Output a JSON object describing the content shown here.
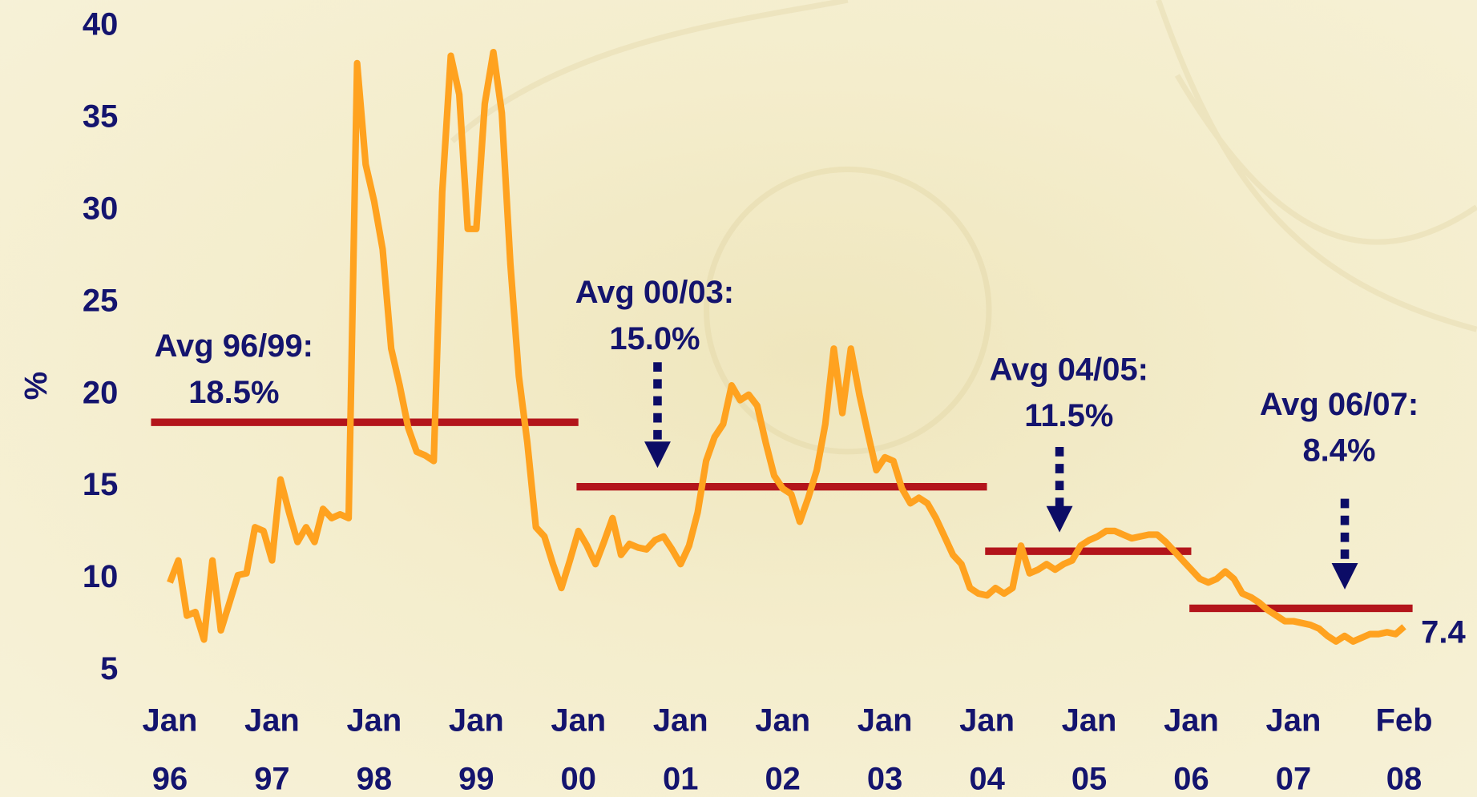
{
  "chart_data": {
    "type": "line",
    "y_label": "%",
    "color": "#ffa21f",
    "average_color": "#b3151b",
    "arrow_color": "#0c0c66",
    "ylim": [
      5,
      40
    ],
    "yticks": [
      5,
      10,
      15,
      20,
      25,
      30,
      35,
      40
    ],
    "xlim": [
      "1996-01",
      "2008-02"
    ],
    "xticks": [
      {
        "value": "1996-01",
        "label": [
          "Jan",
          "96"
        ]
      },
      {
        "value": "1997-01",
        "label": [
          "Jan",
          "97"
        ]
      },
      {
        "value": "1998-01",
        "label": [
          "Jan",
          "98"
        ]
      },
      {
        "value": "1999-01",
        "label": [
          "Jan",
          "99"
        ]
      },
      {
        "value": "2000-01",
        "label": [
          "Jan",
          "00"
        ]
      },
      {
        "value": "2001-01",
        "label": [
          "Jan",
          "01"
        ]
      },
      {
        "value": "2002-01",
        "label": [
          "Jan",
          "02"
        ]
      },
      {
        "value": "2003-01",
        "label": [
          "Jan",
          "03"
        ]
      },
      {
        "value": "2004-01",
        "label": [
          "Jan",
          "04"
        ]
      },
      {
        "value": "2005-01",
        "label": [
          "Jan",
          "05"
        ]
      },
      {
        "value": "2006-01",
        "label": [
          "Jan",
          "06"
        ]
      },
      {
        "value": "2007-01",
        "label": [
          "Jan",
          "07"
        ]
      },
      {
        "value": "2008-02",
        "label": [
          "Feb",
          "08"
        ]
      }
    ],
    "x": [
      "1996-01",
      "1996-02",
      "1996-03",
      "1996-04",
      "1996-05",
      "1996-06",
      "1996-07",
      "1996-08",
      "1996-09",
      "1996-10",
      "1996-11",
      "1996-12",
      "1997-01",
      "1997-02",
      "1997-03",
      "1997-04",
      "1997-05",
      "1997-06",
      "1997-07",
      "1997-08",
      "1997-09",
      "1997-10",
      "1997-11",
      "1997-12",
      "1998-01",
      "1998-02",
      "1998-03",
      "1998-04",
      "1998-05",
      "1998-06",
      "1998-07",
      "1998-08",
      "1998-09",
      "1998-10",
      "1998-11",
      "1998-12",
      "1999-01",
      "1999-02",
      "1999-03",
      "1999-04",
      "1999-05",
      "1999-06",
      "1999-07",
      "1999-08",
      "1999-09",
      "1999-10",
      "1999-11",
      "1999-12",
      "2000-01",
      "2000-02",
      "2000-03",
      "2000-04",
      "2000-05",
      "2000-06",
      "2000-07",
      "2000-08",
      "2000-09",
      "2000-10",
      "2000-11",
      "2000-12",
      "2001-01",
      "2001-02",
      "2001-03",
      "2001-04",
      "2001-05",
      "2001-06",
      "2001-07",
      "2001-08",
      "2001-09",
      "2001-10",
      "2001-11",
      "2001-12",
      "2002-01",
      "2002-02",
      "2002-03",
      "2002-04",
      "2002-05",
      "2002-06",
      "2002-07",
      "2002-08",
      "2002-09",
      "2002-10",
      "2002-11",
      "2002-12",
      "2003-01",
      "2003-02",
      "2003-03",
      "2003-04",
      "2003-05",
      "2003-06",
      "2003-07",
      "2003-08",
      "2003-09",
      "2003-10",
      "2003-11",
      "2003-12",
      "2004-01",
      "2004-02",
      "2004-03",
      "2004-04",
      "2004-05",
      "2004-06",
      "2004-07",
      "2004-08",
      "2004-09",
      "2004-10",
      "2004-11",
      "2004-12",
      "2005-01",
      "2005-02",
      "2005-03",
      "2005-04",
      "2005-05",
      "2005-06",
      "2005-07",
      "2005-08",
      "2005-09",
      "2005-10",
      "2005-11",
      "2005-12",
      "2006-01",
      "2006-02",
      "2006-03",
      "2006-04",
      "2006-05",
      "2006-06",
      "2006-07",
      "2006-08",
      "2006-09",
      "2006-10",
      "2006-11",
      "2006-12",
      "2007-01",
      "2007-02",
      "2007-03",
      "2007-04",
      "2007-05",
      "2007-06",
      "2007-07",
      "2007-08",
      "2007-09",
      "2007-10",
      "2007-11",
      "2007-12",
      "2008-01",
      "2008-02"
    ],
    "values": [
      9.8,
      11,
      8,
      8.2,
      6.7,
      11,
      7.2,
      8.7,
      10.2,
      10.3,
      12.8,
      12.6,
      11,
      15.4,
      13.6,
      12,
      12.8,
      12,
      13.8,
      13.3,
      13.5,
      13.3,
      38,
      32.5,
      30.5,
      27.9,
      22.5,
      20.5,
      18.2,
      16.9,
      16.7,
      16.4,
      31,
      38.4,
      36.3,
      29,
      29,
      35.8,
      38.6,
      35.3,
      27.1,
      21,
      17.4,
      12.8,
      12.3,
      10.8,
      9.5,
      11,
      12.6,
      11.8,
      10.8,
      12,
      13.3,
      11.3,
      11.9,
      11.7,
      11.6,
      12.1,
      12.3,
      11.6,
      10.8,
      11.8,
      13.6,
      16.4,
      17.7,
      18.4,
      20.5,
      19.7,
      20,
      19.4,
      17.4,
      15.6,
      14.9,
      14.6,
      13.1,
      14.4,
      15.9,
      18.4,
      22.5,
      19,
      22.5,
      20,
      17.9,
      15.9,
      16.6,
      16.4,
      14.9,
      14.1,
      14.4,
      14.1,
      13.3,
      12.3,
      11.3,
      10.8,
      9.5,
      9.2,
      9.1,
      9.5,
      9.2,
      9.5,
      11.8,
      10.3,
      10.5,
      10.8,
      10.5,
      10.8,
      11,
      11.8,
      12.1,
      12.3,
      12.6,
      12.6,
      12.4,
      12.2,
      12.3,
      12.4,
      12.4,
      12,
      11.5,
      11,
      10.5,
      10,
      9.8,
      10,
      10.4,
      10,
      9.2,
      9,
      8.7,
      8.3,
      8,
      7.7,
      7.7,
      7.6,
      7.5,
      7.3,
      6.9,
      6.6,
      6.9,
      6.6,
      6.8,
      7,
      7,
      7.1,
      7,
      7.4
    ],
    "averages": [
      {
        "label": "Avg 96/99:",
        "value": 18.5,
        "value_label": "18.5%",
        "from": "1996-01",
        "to": "1999-12"
      },
      {
        "label": "Avg 00/03:",
        "value": 15.0,
        "value_label": "15.0%",
        "from": "2000-01",
        "to": "2003-12"
      },
      {
        "label": "Avg 04/05:",
        "value": 11.5,
        "value_label": "11.5%",
        "from": "2004-01",
        "to": "2005-12"
      },
      {
        "label": "Avg 06/07:",
        "value": 8.4,
        "value_label": "8.4%",
        "from": "2006-01",
        "to": "2008-02"
      }
    ]
  }
}
